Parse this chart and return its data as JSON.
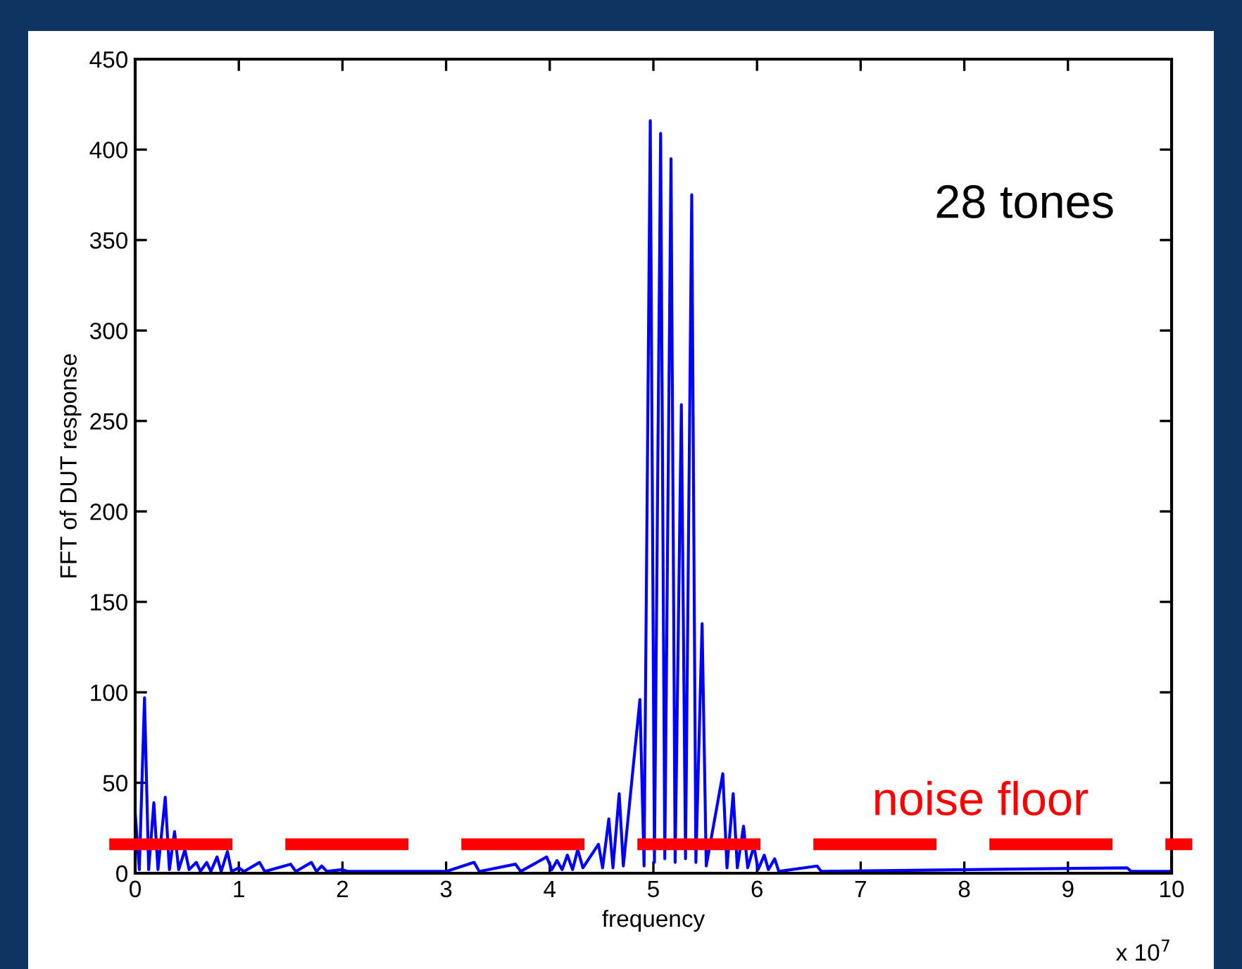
{
  "chart_data": {
    "type": "line",
    "xlabel": "frequency",
    "ylabel": "FFT of DUT response",
    "annotations": [
      "28 tones",
      "x 10$^{7}$"
    ],
    "x": [
      0,
      0.04,
      0.09,
      0.13,
      0.18,
      0.22,
      0.29,
      0.33,
      0.38,
      0.42,
      0.48,
      0.52,
      0.59,
      0.63,
      0.69,
      0.73,
      0.79,
      0.83,
      0.89,
      0.93,
      1.0,
      1.05,
      1.2,
      1.25,
      1.5,
      1.55,
      1.7,
      1.75,
      1.8,
      1.85,
      2.0,
      2.05,
      3.0,
      3.27,
      3.32,
      3.67,
      3.72,
      3.97,
      4.02,
      4.07,
      4.12,
      4.17,
      4.22,
      4.27,
      4.32,
      4.47,
      4.51,
      4.57,
      4.61,
      4.67,
      4.71,
      4.87,
      4.91,
      4.97,
      5.01,
      5.07,
      5.11,
      5.17,
      5.21,
      5.27,
      5.31,
      5.37,
      5.41,
      5.47,
      5.51,
      5.67,
      5.71,
      5.77,
      5.81,
      5.87,
      5.91,
      5.97,
      6.01,
      6.07,
      6.11,
      6.17,
      6.21,
      6.58,
      6.62,
      9.57,
      9.61,
      10
    ],
    "series": [
      {
        "color": "#0000ff",
        "values": [
          33,
          2,
          97,
          2,
          39,
          2,
          42,
          2,
          23,
          2,
          13,
          2,
          6,
          1,
          6,
          1,
          9,
          1,
          12,
          1,
          3,
          1,
          6,
          1,
          5,
          1,
          6,
          1,
          4,
          1,
          2,
          1,
          1,
          6,
          1,
          5,
          1,
          9,
          2,
          7,
          2,
          10,
          2,
          13,
          3,
          16,
          3,
          30,
          3,
          44,
          4,
          96,
          4,
          416,
          6,
          409,
          8,
          395,
          6,
          259,
          8,
          375,
          6,
          138,
          4,
          55,
          3,
          44,
          3,
          26,
          3,
          15,
          2,
          10,
          2,
          8,
          1,
          4,
          1,
          3,
          1,
          1
        ]
      }
    ],
    "xlim": [
      0,
      10
    ],
    "xticks": [
      0,
      1,
      2,
      3,
      4,
      5,
      6,
      7,
      8,
      9,
      10
    ],
    "ylim": [
      0,
      450
    ],
    "yticks": [
      0,
      50,
      100,
      150,
      200,
      250,
      300,
      350,
      400,
      450
    ],
    "ref_lines": [
      {
        "axis": "y",
        "value": 16,
        "label": "noise floor",
        "color": "#ff0000",
        "line_style": "dashed"
      }
    ],
    "grid": false,
    "legend": false,
    "marker": "none",
    "line_style": "solid"
  }
}
